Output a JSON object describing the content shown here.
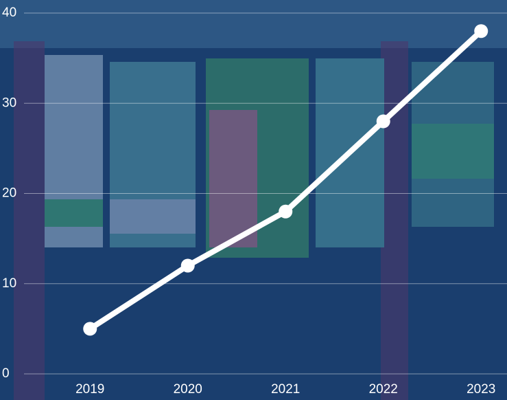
{
  "chart_data": {
    "type": "line",
    "categories": [
      "2019",
      "2020",
      "2021",
      "2022",
      "2023"
    ],
    "values": [
      5,
      12,
      18,
      28,
      38
    ],
    "color": "#ffffff",
    "ylim": [
      0,
      40
    ],
    "yticks": [
      0,
      10,
      20,
      30,
      40
    ],
    "grid": true
  }
}
